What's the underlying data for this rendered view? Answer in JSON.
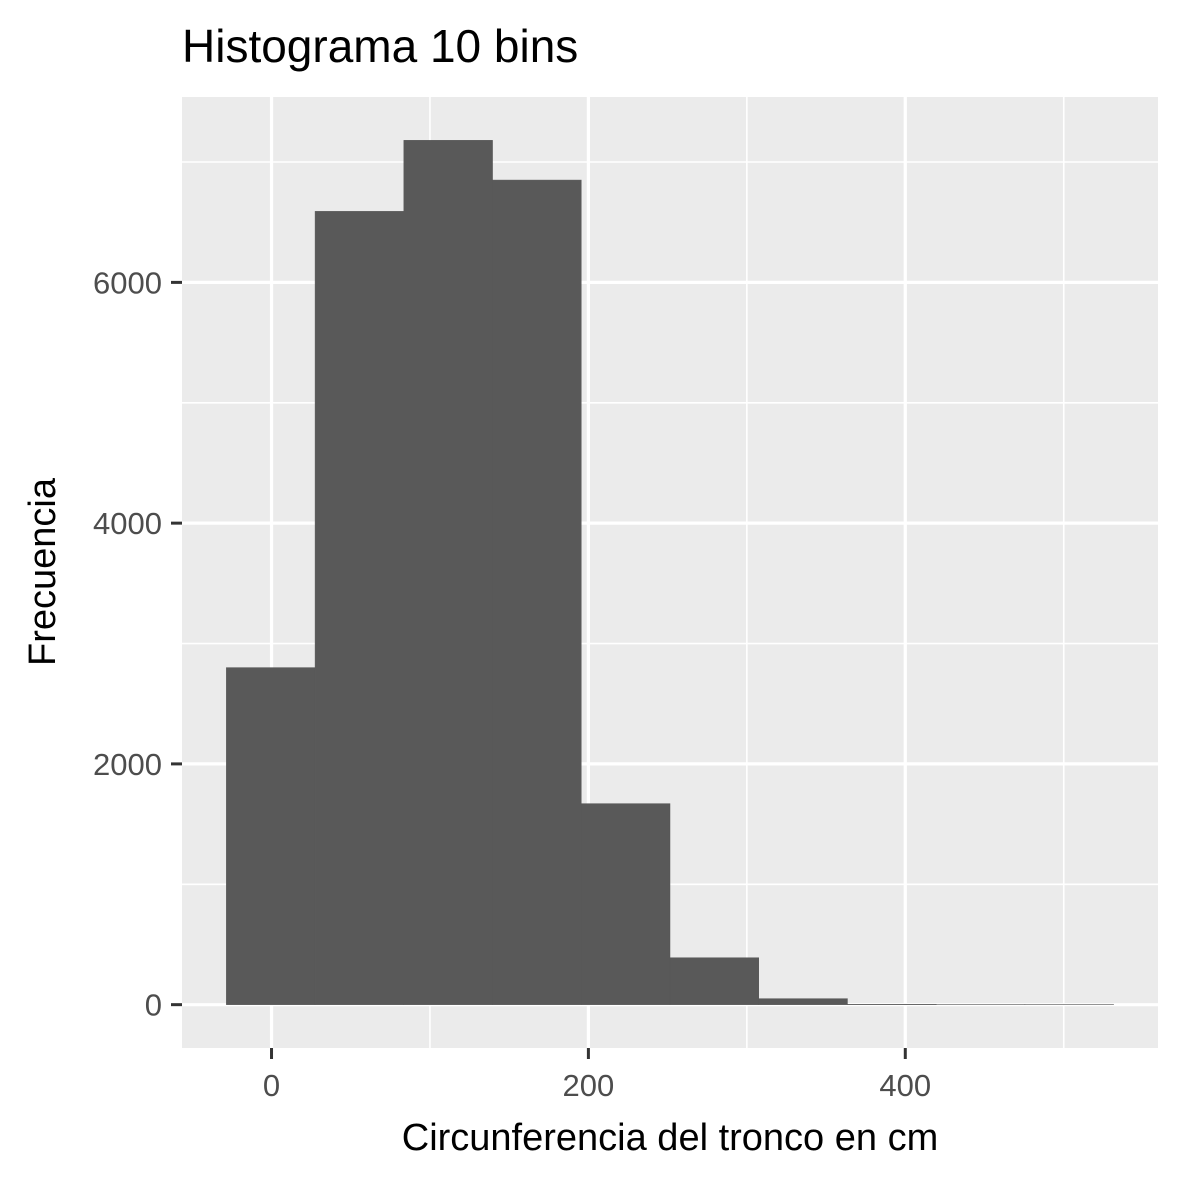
{
  "chart_data": {
    "type": "bar",
    "title": "Histograma 10 bins",
    "xlabel": "Circunferencia del tronco en cm",
    "ylabel": "Frecuencia",
    "bins": [
      {
        "x0": -28.5,
        "x1": 27.5,
        "count": 2800
      },
      {
        "x0": 27.5,
        "x1": 83.5,
        "count": 6590
      },
      {
        "x0": 83.5,
        "x1": 139.5,
        "count": 7180
      },
      {
        "x0": 139.5,
        "x1": 195.5,
        "count": 6850
      },
      {
        "x0": 195.5,
        "x1": 251.5,
        "count": 1670
      },
      {
        "x0": 251.5,
        "x1": 307.5,
        "count": 390
      },
      {
        "x0": 307.5,
        "x1": 363.5,
        "count": 50
      },
      {
        "x0": 363.5,
        "x1": 419.5,
        "count": 3
      },
      {
        "x0": 419.5,
        "x1": 475.5,
        "count": 1
      },
      {
        "x0": 475.5,
        "x1": 531.5,
        "count": 1
      }
    ],
    "xlim": [
      -56.5,
      559.5
    ],
    "ylim": [
      -360,
      7540
    ],
    "x_ticks": [
      0,
      200,
      400
    ],
    "x_tick_labels": [
      "0",
      "200",
      "400"
    ],
    "x_minor_ticks": [
      100,
      300,
      500
    ],
    "y_ticks": [
      0,
      2000,
      4000,
      6000
    ],
    "y_tick_labels": [
      "0",
      "2000",
      "4000",
      "6000"
    ],
    "y_minor_ticks": [
      1000,
      3000,
      5000,
      7000
    ],
    "grid": true,
    "colors": {
      "panel_background": "#ebebeb",
      "grid_major": "#ffffff",
      "grid_minor": "#ffffff",
      "bar_fill": "#595959",
      "tick_color": "#333333"
    }
  }
}
